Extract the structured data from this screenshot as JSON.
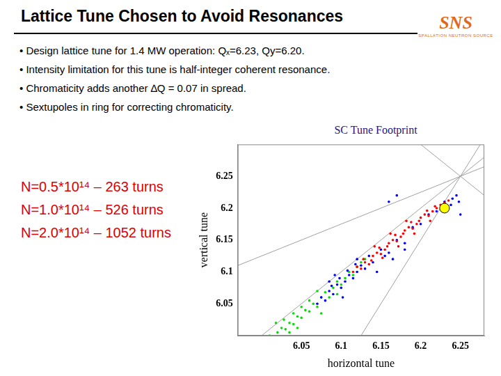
{
  "slide": {
    "title": "Lattice Tune Chosen to Avoid Resonances",
    "bullets": [
      "Design lattice tune for 1.4 MW operation: Qₓ=6.23, Qy=6.20.",
      "Intensity limitation for this tune is half-integer coherent resonance.",
      "Chromaticity adds another ∆Q = 0.07 in spread.",
      "Sextupoles in ring for correcting chromaticity."
    ],
    "logo": {
      "text": "SNS",
      "subtitle": "SPALLATION NEUTRON SOURCE"
    }
  },
  "chart_data": {
    "type": "scatter",
    "title": "SC Tune Footprint",
    "x_label": "horizontal tune",
    "y_label": "vertical tune",
    "xlim": [
      5.97,
      6.28
    ],
    "xticks": [
      6.05,
      6.1,
      6.15,
      6.2,
      6.25
    ],
    "ylim": [
      6.0,
      6.3
    ],
    "yticks": [
      6.05,
      6.1,
      6.15,
      6.2,
      6.25
    ],
    "grid": false,
    "marker": "circle",
    "working_point": {
      "x": 6.23,
      "y": 6.2,
      "color": "#ffff00"
    },
    "series": [
      {
        "name": "N=0.5*10¹⁴ – 263 turns",
        "color": "#ff0000",
        "x": [
          6.115,
          6.12,
          6.125,
          6.13,
          6.128,
          6.135,
          6.14,
          6.138,
          6.145,
          6.15,
          6.148,
          6.155,
          6.16,
          6.158,
          6.165,
          6.17,
          6.168,
          6.175,
          6.18,
          6.178,
          6.185,
          6.19,
          6.188,
          6.195,
          6.2,
          6.198,
          6.205,
          6.21,
          6.208,
          6.215,
          6.22,
          6.218,
          6.225,
          6.23,
          6.235,
          6.152,
          6.172,
          6.192,
          6.212,
          6.142,
          6.162,
          6.182
        ],
        "y": [
          6.1,
          6.108,
          6.105,
          6.115,
          6.12,
          6.112,
          6.125,
          6.118,
          6.13,
          6.128,
          6.138,
          6.135,
          6.145,
          6.14,
          6.15,
          6.148,
          6.158,
          6.155,
          6.165,
          6.16,
          6.17,
          6.168,
          6.178,
          6.175,
          6.185,
          6.18,
          6.19,
          6.188,
          6.196,
          6.195,
          6.2,
          6.203,
          6.205,
          6.208,
          6.212,
          6.122,
          6.14,
          6.16,
          6.18,
          6.14,
          6.16,
          6.18
        ]
      },
      {
        "name": "N=1.0*10¹⁴ – 526 turns",
        "color": "#0000ff",
        "x": [
          6.07,
          6.075,
          6.08,
          6.085,
          6.09,
          6.088,
          6.095,
          6.1,
          6.098,
          6.105,
          6.11,
          6.108,
          6.115,
          6.12,
          6.118,
          6.125,
          6.13,
          6.135,
          6.14,
          6.15,
          6.16,
          6.17,
          6.18,
          6.19,
          6.2,
          6.21,
          6.22,
          6.23,
          6.24,
          6.245,
          6.238,
          6.228,
          6.102,
          6.092,
          6.145,
          6.165,
          6.085,
          6.248,
          6.155,
          6.18,
          6.17,
          6.16,
          6.12,
          6.25
        ],
        "y": [
          6.05,
          6.06,
          6.055,
          6.07,
          6.065,
          6.078,
          6.08,
          6.075,
          6.09,
          6.085,
          6.095,
          6.102,
          6.09,
          6.1,
          6.112,
          6.11,
          6.105,
          6.125,
          6.115,
          6.135,
          6.13,
          6.15,
          6.145,
          6.17,
          6.175,
          6.19,
          6.195,
          6.21,
          6.215,
          6.22,
          6.205,
          6.2,
          6.06,
          6.095,
          6.1,
          6.12,
          6.085,
          6.21,
          6.125,
          6.135,
          6.22,
          6.21,
          6.12,
          6.19
        ]
      },
      {
        "name": "N=2.0*10¹⁴ – 1052 turns",
        "color": "#00dd00",
        "x": [
          6.01,
          6.02,
          6.025,
          6.03,
          6.035,
          6.028,
          6.04,
          6.045,
          6.04,
          6.05,
          6.055,
          6.05,
          6.06,
          6.065,
          6.06,
          6.07,
          6.075,
          6.08,
          6.085,
          6.09,
          6.095,
          6.1,
          6.105,
          6.11,
          6.115,
          6.12,
          6.125,
          6.13,
          6.018,
          6.035,
          6.07,
          6.095,
          6.045,
          6.075
        ],
        "y": [
          6.0,
          6.005,
          6.012,
          6.01,
          6.02,
          6.025,
          6.018,
          6.03,
          6.035,
          6.028,
          6.04,
          6.045,
          6.038,
          6.05,
          6.055,
          6.045,
          6.06,
          6.068,
          6.06,
          6.075,
          6.085,
          6.08,
          6.09,
          6.1,
          6.095,
          6.108,
          6.115,
          6.12,
          6.02,
          6.005,
          6.07,
          6.065,
          6.012,
          6.035
        ]
      }
    ],
    "resonance_lines": [
      {
        "x": [
          6.0,
          6.28
        ],
        "y": [
          6.0,
          6.28
        ]
      },
      {
        "x": [
          6.2,
          6.28
        ],
        "y": [
          6.3,
          6.22
        ]
      },
      {
        "x": [
          5.97,
          6.28
        ],
        "y": [
          6.11,
          6.265
        ]
      },
      {
        "x": [
          6.125,
          6.275
        ],
        "y": [
          6.0,
          6.3
        ]
      }
    ]
  }
}
